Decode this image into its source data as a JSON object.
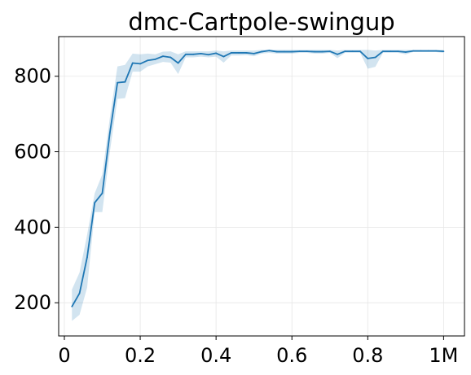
{
  "chart_data": {
    "type": "line",
    "title": "dmc-Cartpole-swingup",
    "xlabel": "",
    "ylabel": "",
    "xlim": [
      -0.015,
      1.055
    ],
    "ylim": [
      112,
      905
    ],
    "grid": true,
    "x_ticks": [
      {
        "value": 0,
        "label": "0"
      },
      {
        "value": 0.2,
        "label": "0.2"
      },
      {
        "value": 0.4,
        "label": "0.4"
      },
      {
        "value": 0.6,
        "label": "0.6"
      },
      {
        "value": 0.8,
        "label": "0.8"
      },
      {
        "value": 1.0,
        "label": "1M"
      }
    ],
    "y_ticks": [
      {
        "value": 200,
        "label": "200"
      },
      {
        "value": 400,
        "label": "400"
      },
      {
        "value": 600,
        "label": "600"
      },
      {
        "value": 800,
        "label": "800"
      }
    ],
    "series": [
      {
        "color": "#1f77b4",
        "band_color": "#1f77b4",
        "band_opacity": 0.2,
        "x": [
          0.02,
          0.04,
          0.06,
          0.08,
          0.1,
          0.12,
          0.14,
          0.16,
          0.18,
          0.2,
          0.22,
          0.24,
          0.26,
          0.28,
          0.3,
          0.32,
          0.34,
          0.36,
          0.38,
          0.4,
          0.42,
          0.44,
          0.46,
          0.48,
          0.5,
          0.52,
          0.54,
          0.56,
          0.58,
          0.6,
          0.62,
          0.64,
          0.66,
          0.68,
          0.7,
          0.72,
          0.74,
          0.76,
          0.78,
          0.8,
          0.82,
          0.84,
          0.86,
          0.88,
          0.9,
          0.92,
          0.94,
          0.96,
          0.98,
          1.0
        ],
        "y": [
          190,
          225,
          320,
          465,
          490,
          650,
          783,
          785,
          835,
          833,
          842,
          845,
          853,
          850,
          835,
          858,
          858,
          860,
          857,
          861,
          852,
          862,
          862,
          862,
          860,
          865,
          868,
          865,
          865,
          865,
          866,
          866,
          865,
          865,
          866,
          858,
          866,
          866,
          866,
          847,
          850,
          866,
          866,
          866,
          864,
          867,
          867,
          867,
          867,
          866
        ],
        "upper": [
          235,
          280,
          380,
          490,
          540,
          690,
          826,
          830,
          860,
          858,
          860,
          858,
          865,
          866,
          858,
          866,
          866,
          866,
          866,
          868,
          866,
          868,
          868,
          868,
          868,
          870,
          870,
          870,
          870,
          870,
          870,
          870,
          870,
          870,
          870,
          868,
          870,
          870,
          870,
          870,
          868,
          870,
          870,
          870,
          870,
          870,
          870,
          870,
          870,
          870
        ],
        "lower": [
          152,
          168,
          240,
          440,
          440,
          600,
          740,
          742,
          812,
          812,
          826,
          832,
          838,
          836,
          806,
          850,
          850,
          852,
          850,
          852,
          836,
          855,
          855,
          856,
          853,
          860,
          862,
          860,
          860,
          860,
          862,
          862,
          860,
          860,
          862,
          848,
          862,
          862,
          862,
          820,
          825,
          862,
          862,
          862,
          858,
          864,
          864,
          864,
          864,
          862
        ]
      }
    ]
  }
}
